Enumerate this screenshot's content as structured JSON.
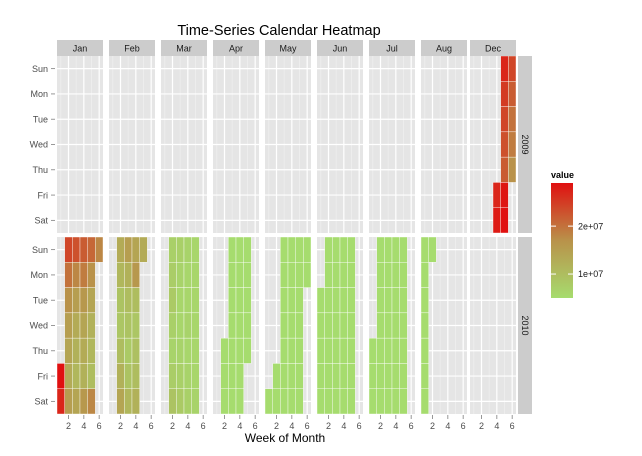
{
  "chart_data": {
    "type": "heatmap",
    "title": "Time-Series Calendar Heatmap",
    "xlabel": "Week of Month",
    "ylabel": "",
    "x_ticks": [
      2,
      4,
      6
    ],
    "x_range": [
      0.5,
      6.5
    ],
    "months": [
      "Jan",
      "Feb",
      "Mar",
      "Apr",
      "May",
      "Jun",
      "Jul",
      "Aug",
      "Dec"
    ],
    "years": [
      "2009",
      "2010"
    ],
    "weekdays": [
      "Sun",
      "Mon",
      "Tue",
      "Wed",
      "Thu",
      "Fri",
      "Sat"
    ],
    "legend": {
      "title": "value",
      "min": 5000000,
      "max": 29000000,
      "ticks": [
        10000000,
        20000000
      ],
      "tick_labels": [
        "1e+07",
        "2e+07"
      ],
      "colors": {
        "low": "#a6dc6e",
        "mid": "#b9924a",
        "high": "#e01010"
      }
    },
    "grid": true,
    "facet_rows": [
      {
        "year": "2009",
        "months": [
          {
            "month": "Jan",
            "weeks": []
          },
          {
            "month": "Feb",
            "weeks": []
          },
          {
            "month": "Mar",
            "weeks": []
          },
          {
            "month": "Apr",
            "weeks": []
          },
          {
            "month": "May",
            "weeks": []
          },
          {
            "month": "Jun",
            "weeks": []
          },
          {
            "month": "Jul",
            "weeks": []
          },
          {
            "month": "Aug",
            "weeks": []
          },
          {
            "month": "Dec",
            "weeks": [
              {
                "week": 4,
                "values": [
                  null,
                  null,
                  null,
                  null,
                  null,
                  27000000,
                  28000000
                ]
              },
              {
                "week": 5,
                "values": [
                  27000000,
                  25000000,
                  24000000,
                  23000000,
                  22000000,
                  28500000,
                  29000000
                ]
              },
              {
                "week": 6,
                "values": [
                  24000000,
                  22000000,
                  20000000,
                  19000000,
                  17000000,
                  null,
                  null
                ]
              }
            ]
          }
        ]
      },
      {
        "year": "2010",
        "months": [
          {
            "month": "Jan",
            "weeks": [
              {
                "week": 1,
                "values": [
                  null,
                  null,
                  null,
                  null,
                  null,
                  29000000,
                  27000000
                ]
              },
              {
                "week": 2,
                "values": [
                  24000000,
                  20000000,
                  17000000,
                  15000000,
                  14000000,
                  13000000,
                  15000000
                ]
              },
              {
                "week": 3,
                "values": [
                  23000000,
                  18000000,
                  15000000,
                  13000000,
                  12000000,
                  11000000,
                  14000000
                ]
              },
              {
                "week": 4,
                "values": [
                  22000000,
                  19000000,
                  16000000,
                  14000000,
                  13000000,
                  12000000,
                  16000000
                ]
              },
              {
                "week": 5,
                "values": [
                  21000000,
                  17000000,
                  14000000,
                  12000000,
                  11000000,
                  10000000,
                  18000000
                ]
              },
              {
                "week": 6,
                "values": [
                  18000000,
                  null,
                  null,
                  null,
                  null,
                  null,
                  null
                ]
              }
            ]
          },
          {
            "month": "Feb",
            "weeks": [
              {
                "week": 2,
                "values": [
                  13000000,
                  11000000,
                  9000000,
                  8500000,
                  10000000,
                  12000000,
                  14000000
                ]
              },
              {
                "week": 3,
                "values": [
                  15000000,
                  12000000,
                  10000000,
                  9000000,
                  8000000,
                  9000000,
                  11000000
                ]
              },
              {
                "week": 4,
                "values": [
                  14000000,
                  16000000,
                  10000000,
                  8500000,
                  9500000,
                  10000000,
                  12000000
                ]
              },
              {
                "week": 5,
                "values": [
                  13000000,
                  null,
                  null,
                  null,
                  null,
                  null,
                  null
                ]
              }
            ]
          },
          {
            "month": "Mar",
            "weeks": [
              {
                "week": 2,
                "values": [
                  7000000,
                  7500000,
                  8000000,
                  7000000,
                  6500000,
                  7500000,
                  9000000
                ]
              },
              {
                "week": 3,
                "values": [
                  7000000,
                  6500000,
                  6000000,
                  6000000,
                  6500000,
                  7000000,
                  8000000
                ]
              },
              {
                "week": 4,
                "values": [
                  6500000,
                  6000000,
                  6000000,
                  6500000,
                  6000000,
                  6500000,
                  7000000
                ]
              },
              {
                "week": 5,
                "values": [
                  6000000,
                  6000000,
                  6000000,
                  6000000,
                  6000000,
                  6000000,
                  6500000
                ]
              }
            ]
          },
          {
            "month": "Apr",
            "weeks": [
              {
                "week": 2,
                "values": [
                  null,
                  null,
                  null,
                  null,
                  5000000,
                  5000000,
                  5000000
                ]
              },
              {
                "week": 3,
                "values": [
                  5000000,
                  5000000,
                  5000000,
                  5000000,
                  5000000,
                  5000000,
                  5000000
                ]
              },
              {
                "week": 4,
                "values": [
                  5000000,
                  5000000,
                  5000000,
                  5000000,
                  5000000,
                  5000000,
                  5000000
                ]
              },
              {
                "week": 5,
                "values": [
                  5000000,
                  5000000,
                  5000000,
                  5000000,
                  5000000,
                  null,
                  null
                ]
              }
            ]
          },
          {
            "month": "May",
            "weeks": [
              {
                "week": 1,
                "values": [
                  null,
                  null,
                  null,
                  null,
                  null,
                  null,
                  5000000
                ]
              },
              {
                "week": 2,
                "values": [
                  null,
                  null,
                  null,
                  null,
                  null,
                  5000000,
                  5000000
                ]
              },
              {
                "week": 3,
                "values": [
                  5000000,
                  5000000,
                  5000000,
                  5000000,
                  5000000,
                  5000000,
                  5000000
                ]
              },
              {
                "week": 4,
                "values": [
                  5000000,
                  5000000,
                  5000000,
                  5000000,
                  5000000,
                  5000000,
                  5000000
                ]
              },
              {
                "week": 5,
                "values": [
                  5000000,
                  5000000,
                  5000000,
                  5000000,
                  5000000,
                  5000000,
                  5000000
                ]
              },
              {
                "week": 6,
                "values": [
                  5000000,
                  5000000,
                  null,
                  null,
                  null,
                  null,
                  null
                ]
              }
            ]
          },
          {
            "month": "Jun",
            "weeks": [
              {
                "week": 1,
                "values": [
                  null,
                  null,
                  5000000,
                  5000000,
                  5000000,
                  5000000,
                  5000000
                ]
              },
              {
                "week": 2,
                "values": [
                  5000000,
                  5000000,
                  5000000,
                  5000000,
                  5000000,
                  5000000,
                  5000000
                ]
              },
              {
                "week": 3,
                "values": [
                  5000000,
                  5000000,
                  5000000,
                  5000000,
                  5000000,
                  5000000,
                  5000000
                ]
              },
              {
                "week": 4,
                "values": [
                  5000000,
                  5000000,
                  5000000,
                  5000000,
                  5000000,
                  5000000,
                  5000000
                ]
              },
              {
                "week": 5,
                "values": [
                  5000000,
                  5000000,
                  5000000,
                  5000000,
                  5000000,
                  5000000,
                  5000000
                ]
              }
            ]
          },
          {
            "month": "Jul",
            "weeks": [
              {
                "week": 1,
                "values": [
                  null,
                  null,
                  null,
                  null,
                  5000000,
                  5000000,
                  5000000
                ]
              },
              {
                "week": 2,
                "values": [
                  5000000,
                  5000000,
                  5000000,
                  5000000,
                  5000000,
                  5000000,
                  5000000
                ]
              },
              {
                "week": 3,
                "values": [
                  5000000,
                  5000000,
                  5000000,
                  5000000,
                  5000000,
                  5000000,
                  5000000
                ]
              },
              {
                "week": 4,
                "values": [
                  5000000,
                  5000000,
                  5000000,
                  5000000,
                  5000000,
                  5000000,
                  5000000
                ]
              },
              {
                "week": 5,
                "values": [
                  5000000,
                  5000000,
                  5000000,
                  5000000,
                  5000000,
                  5000000,
                  5000000
                ]
              }
            ]
          },
          {
            "month": "Aug",
            "weeks": [
              {
                "week": 1,
                "values": [
                  5000000,
                  5000000,
                  5000000,
                  5000000,
                  5000000,
                  5000000,
                  5000000
                ]
              },
              {
                "week": 2,
                "values": [
                  5000000,
                  null,
                  null,
                  null,
                  null,
                  null,
                  null
                ]
              }
            ]
          },
          {
            "month": "Dec",
            "weeks": []
          }
        ]
      }
    ]
  }
}
